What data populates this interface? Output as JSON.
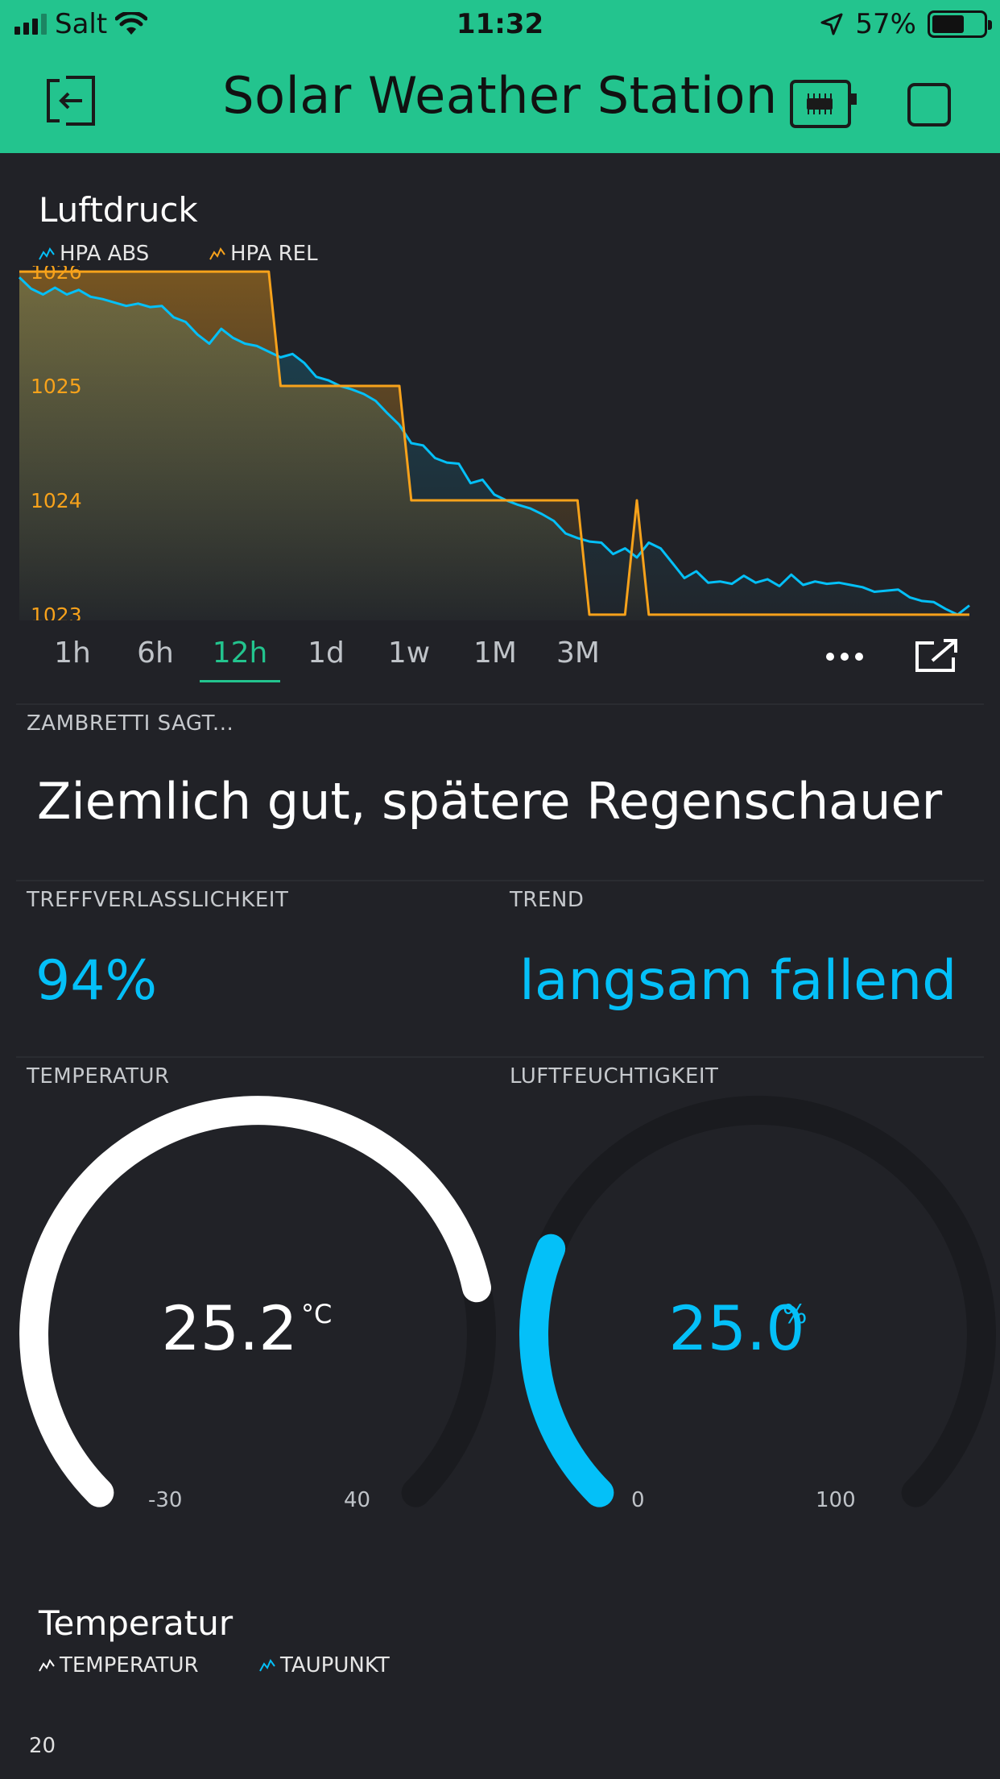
{
  "status_bar": {
    "carrier": "Salt",
    "time": "11:32",
    "battery": "57%"
  },
  "header": {
    "title": "Solar Weather Station"
  },
  "colors": {
    "header_bg": "#23c48e",
    "background": "#212227",
    "series_abs": "#04c0f8",
    "series_rel": "#f7a21b",
    "accent": "#23c48e"
  },
  "pressure_chart": {
    "title": "Luftdruck",
    "legend": [
      "HPA ABS",
      "HPA REL"
    ],
    "periods": [
      "1h",
      "6h",
      "12h",
      "1d",
      "1w",
      "1M",
      "3M"
    ],
    "active_period": "12h",
    "chart_data": {
      "type": "line",
      "title": "Luftdruck",
      "ylim": [
        1022.95,
        1026.05
      ],
      "yticks": [
        "1026",
        "1025",
        "1024",
        "1023"
      ],
      "series": [
        {
          "name": "HPA ABS",
          "values": [
            1025.95,
            1025.85,
            1025.8,
            1025.86,
            1025.8,
            1025.84,
            1025.78,
            1025.76,
            1025.73,
            1025.7,
            1025.72,
            1025.69,
            1025.7,
            1025.6,
            1025.56,
            1025.45,
            1025.37,
            1025.5,
            1025.42,
            1025.37,
            1025.35,
            1025.3,
            1025.25,
            1025.28,
            1025.2,
            1025.08,
            1025.05,
            1025.0,
            1024.97,
            1024.93,
            1024.87,
            1024.76,
            1024.66,
            1024.5,
            1024.48,
            1024.37,
            1024.33,
            1024.32,
            1024.15,
            1024.18,
            1024.05,
            1024.0,
            1023.96,
            1023.93,
            1023.88,
            1023.82,
            1023.71,
            1023.67,
            1023.64,
            1023.63,
            1023.53,
            1023.58,
            1023.5,
            1023.63,
            1023.58,
            1023.45,
            1023.32,
            1023.38,
            1023.28,
            1023.29,
            1023.27,
            1023.34,
            1023.28,
            1023.31,
            1023.25,
            1023.35,
            1023.26,
            1023.29,
            1023.27,
            1023.28,
            1023.26,
            1023.24,
            1023.2,
            1023.21,
            1023.22,
            1023.15,
            1023.12,
            1023.11,
            1023.05,
            1023.0,
            1023.08
          ]
        },
        {
          "name": "HPA REL",
          "values": [
            1026,
            1026,
            1026,
            1026,
            1026,
            1026,
            1026,
            1026,
            1026,
            1026,
            1026,
            1026,
            1026,
            1026,
            1026,
            1026,
            1026,
            1026,
            1026,
            1026,
            1026,
            1026,
            1025,
            1025,
            1025,
            1025,
            1025,
            1025,
            1025,
            1025,
            1025,
            1025,
            1025,
            1024,
            1024,
            1024,
            1024,
            1024,
            1024,
            1024,
            1024,
            1024,
            1024,
            1024,
            1024,
            1024,
            1024,
            1024,
            1023,
            1023,
            1023,
            1023,
            1024,
            1023,
            1023,
            1023,
            1023,
            1023,
            1023,
            1023,
            1023,
            1023,
            1023,
            1023,
            1023,
            1023,
            1023,
            1023,
            1023,
            1023,
            1023,
            1023,
            1023,
            1023,
            1023,
            1023,
            1023,
            1023,
            1023,
            1023,
            1023
          ]
        }
      ]
    }
  },
  "zambretti": {
    "label": "ZAMBRETTI SAGT...",
    "text": "Ziemlich gut, spätere Regenschauer"
  },
  "reliability": {
    "label": "TREFFVERLASSLICHKEIT",
    "value": "94%"
  },
  "trend": {
    "label": "TREND",
    "value": "langsam fallend"
  },
  "temperature_gauge": {
    "label": "TEMPERATUR",
    "value": "25.2",
    "unit": "°C",
    "min": "-30",
    "max": "40",
    "level": 0.789,
    "color": "#ffffff"
  },
  "humidity_gauge": {
    "label": "LUFTFEUCHTIGKEIT",
    "value": "25.0",
    "unit": "%",
    "min": "0",
    "max": "100",
    "level": 0.25,
    "color": "#04c0f8"
  },
  "temp_chart": {
    "title": "Temperatur",
    "legend": [
      "TEMPERATUR",
      "TAUPUNKT"
    ],
    "first_tick": "20"
  }
}
